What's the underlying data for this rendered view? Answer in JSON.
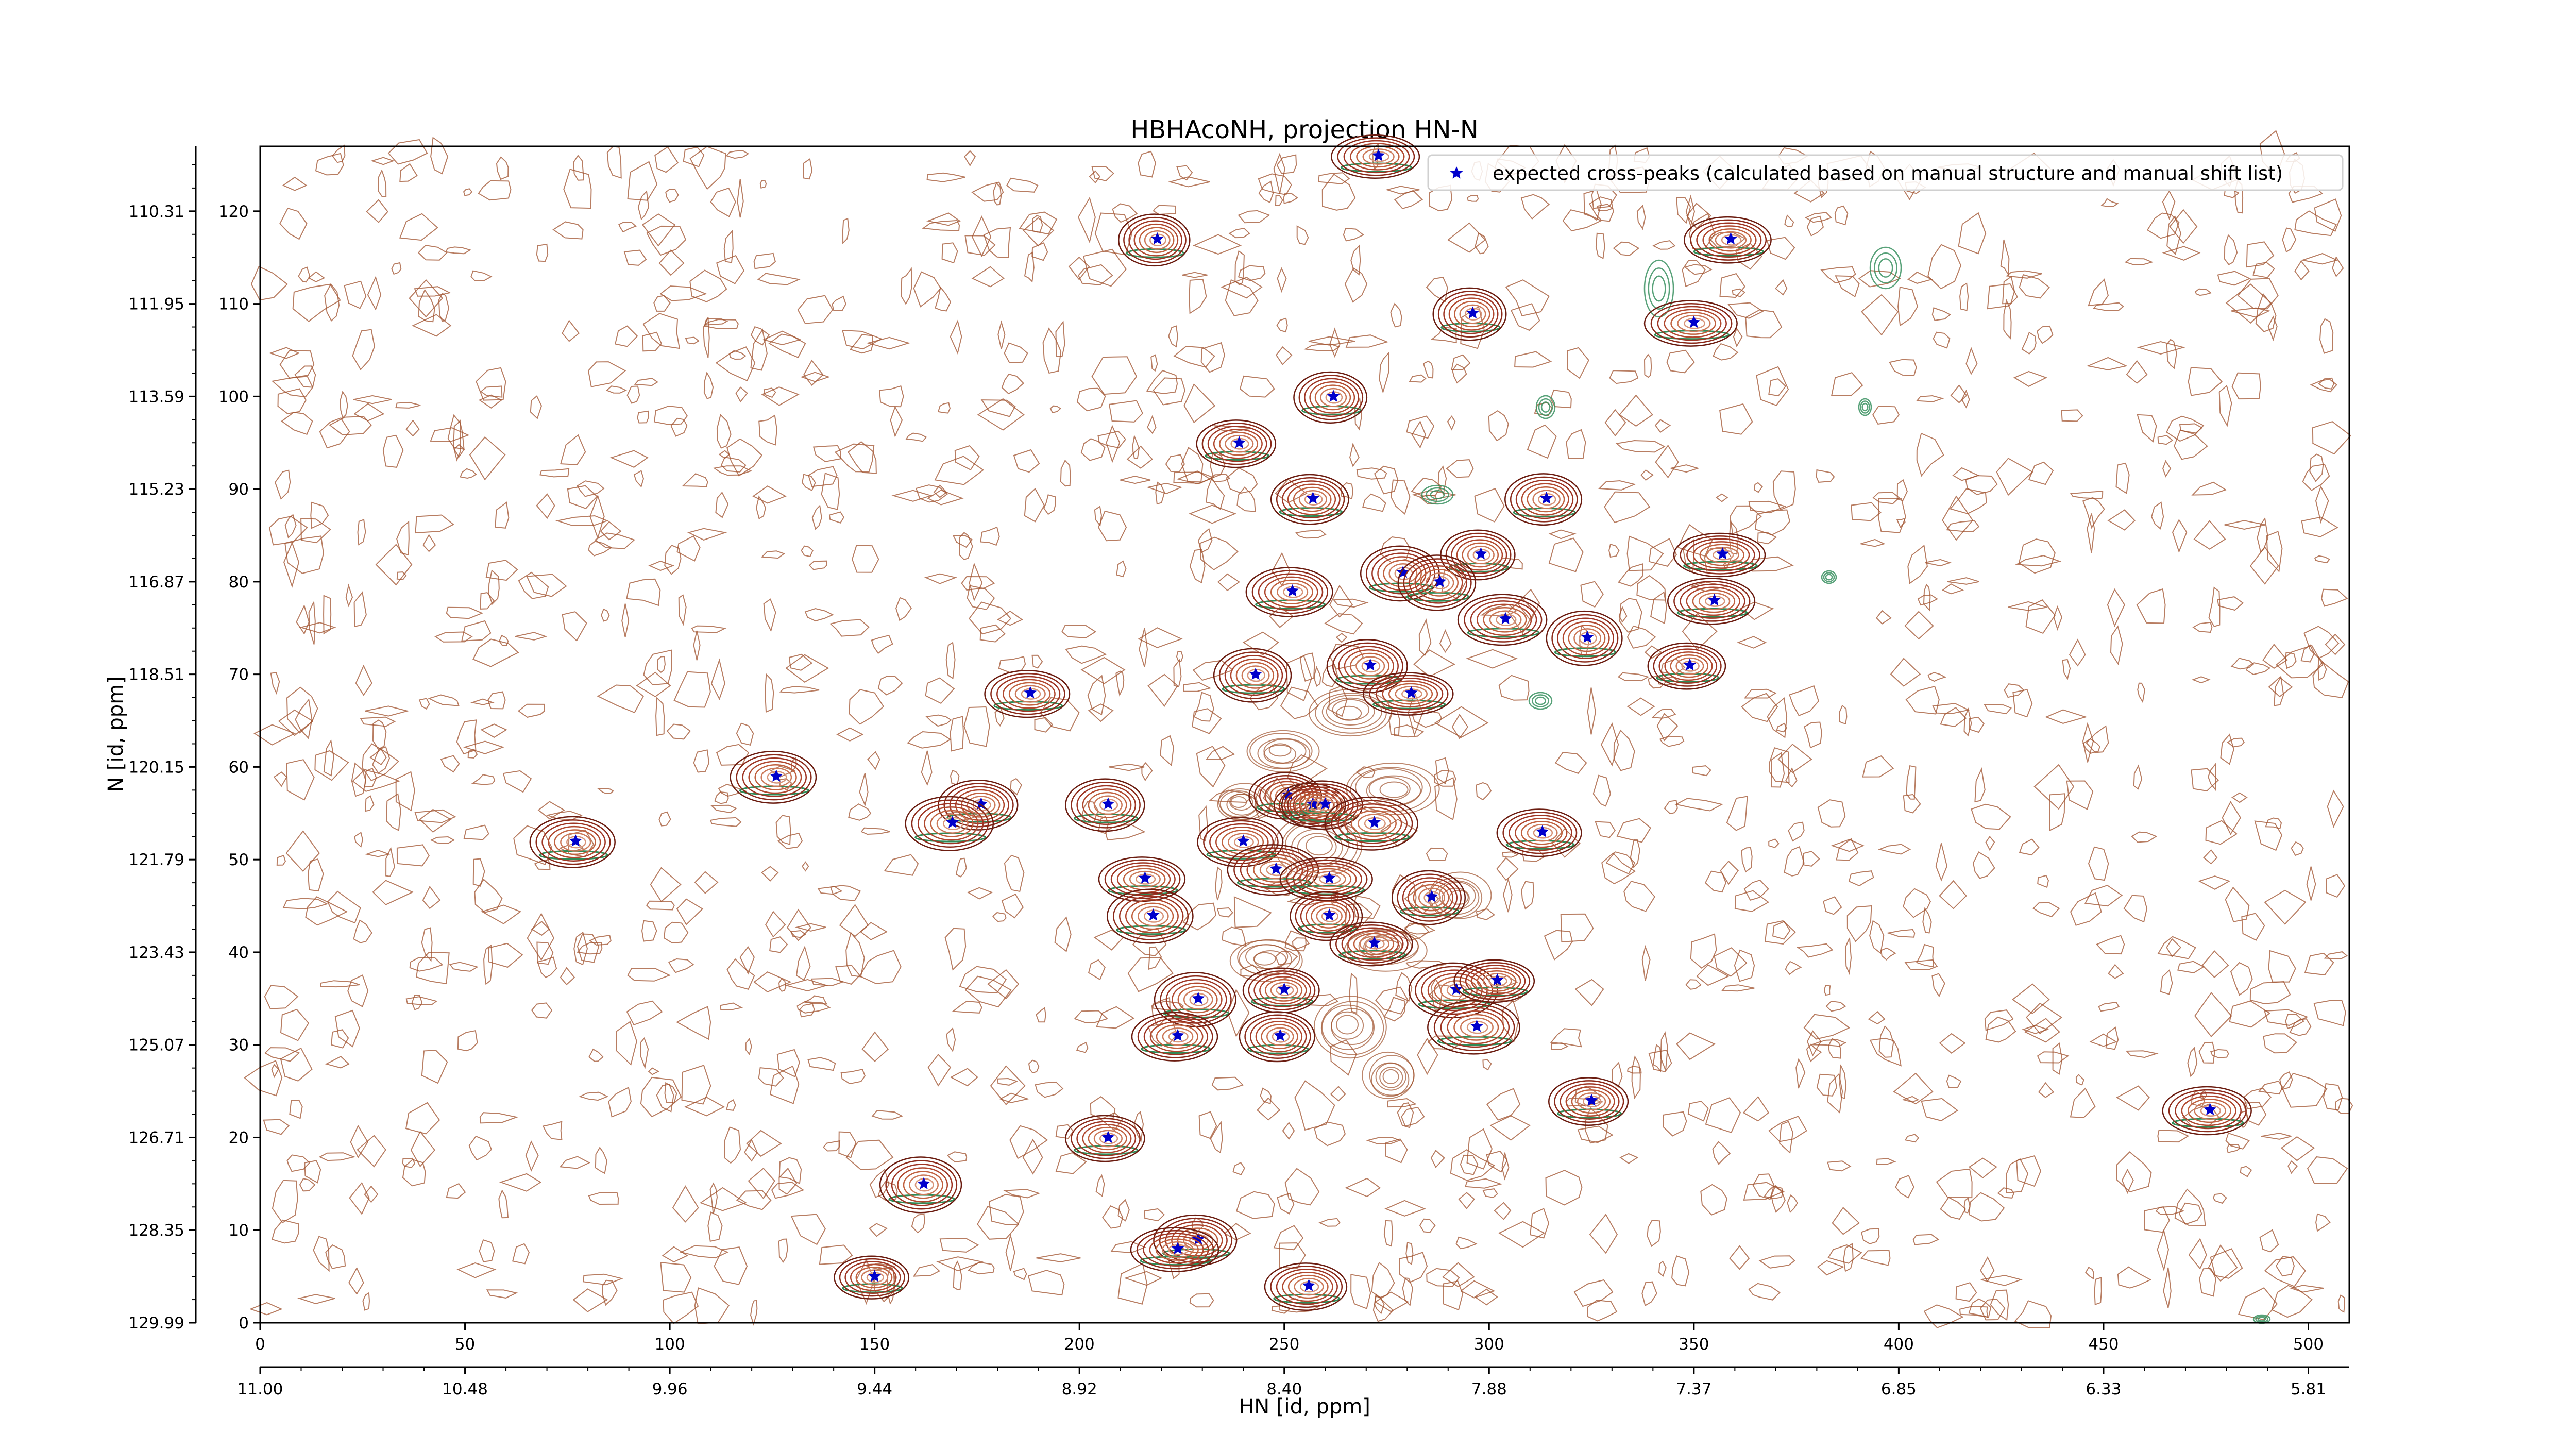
{
  "chart_data": {
    "type": "scatter",
    "title": "HBHAcoNH, projection HN-N",
    "xlabel": "HN [id, ppm]",
    "ylabel": "N [id, ppm]",
    "xlim": [
      0,
      510
    ],
    "ylim": [
      0,
      127
    ],
    "x_ticks": [
      0,
      50,
      100,
      150,
      200,
      250,
      300,
      350,
      400,
      450,
      500
    ],
    "y_ticks": [
      0,
      10,
      20,
      30,
      40,
      50,
      60,
      70,
      80,
      90,
      100,
      110,
      120
    ],
    "hn_ppm_tick_labels": [
      "11.00",
      "10.48",
      "9.96",
      "9.44",
      "8.92",
      "8.40",
      "7.88",
      "7.37",
      "6.85",
      "6.33",
      "5.81"
    ],
    "n_ppm_tick_labels": [
      "129.99",
      "128.35",
      "126.71",
      "125.07",
      "123.43",
      "121.79",
      "120.15",
      "118.51",
      "116.87",
      "115.23",
      "113.59",
      "111.95",
      "110.31"
    ],
    "grid": false,
    "legend_placement": "top-right",
    "series": [
      {
        "name": "expected cross-peaks (calculated based on manual structure and manual shift list)",
        "color": "#0000cc",
        "marker": "star",
        "points": [
          [
            273,
            126
          ],
          [
            219,
            117
          ],
          [
            359,
            117
          ],
          [
            296,
            109
          ],
          [
            350,
            108
          ],
          [
            262,
            100
          ],
          [
            239,
            95
          ],
          [
            257,
            89
          ],
          [
            314,
            89
          ],
          [
            298,
            83
          ],
          [
            279,
            81
          ],
          [
            288,
            80
          ],
          [
            357,
            83
          ],
          [
            252,
            79
          ],
          [
            304,
            76
          ],
          [
            355,
            78
          ],
          [
            324,
            74
          ],
          [
            243,
            70
          ],
          [
            271,
            71
          ],
          [
            281,
            68
          ],
          [
            349,
            71
          ],
          [
            188,
            68
          ],
          [
            126,
            59
          ],
          [
            176,
            56
          ],
          [
            169,
            54
          ],
          [
            207,
            56
          ],
          [
            251,
            57
          ],
          [
            257,
            56
          ],
          [
            260,
            56
          ],
          [
            272,
            54
          ],
          [
            240,
            52
          ],
          [
            248,
            49
          ],
          [
            313,
            53
          ],
          [
            77,
            52
          ],
          [
            216,
            48
          ],
          [
            261,
            48
          ],
          [
            286,
            46
          ],
          [
            218,
            44
          ],
          [
            261,
            44
          ],
          [
            272,
            41
          ],
          [
            229,
            35
          ],
          [
            250,
            36
          ],
          [
            292,
            36
          ],
          [
            302,
            37
          ],
          [
            297,
            32
          ],
          [
            224,
            31
          ],
          [
            249,
            31
          ],
          [
            325,
            24
          ],
          [
            476,
            23
          ],
          [
            207,
            20
          ],
          [
            162,
            15
          ],
          [
            229,
            9
          ],
          [
            224,
            8
          ],
          [
            150,
            5
          ],
          [
            256,
            4
          ]
        ]
      }
    ]
  }
}
